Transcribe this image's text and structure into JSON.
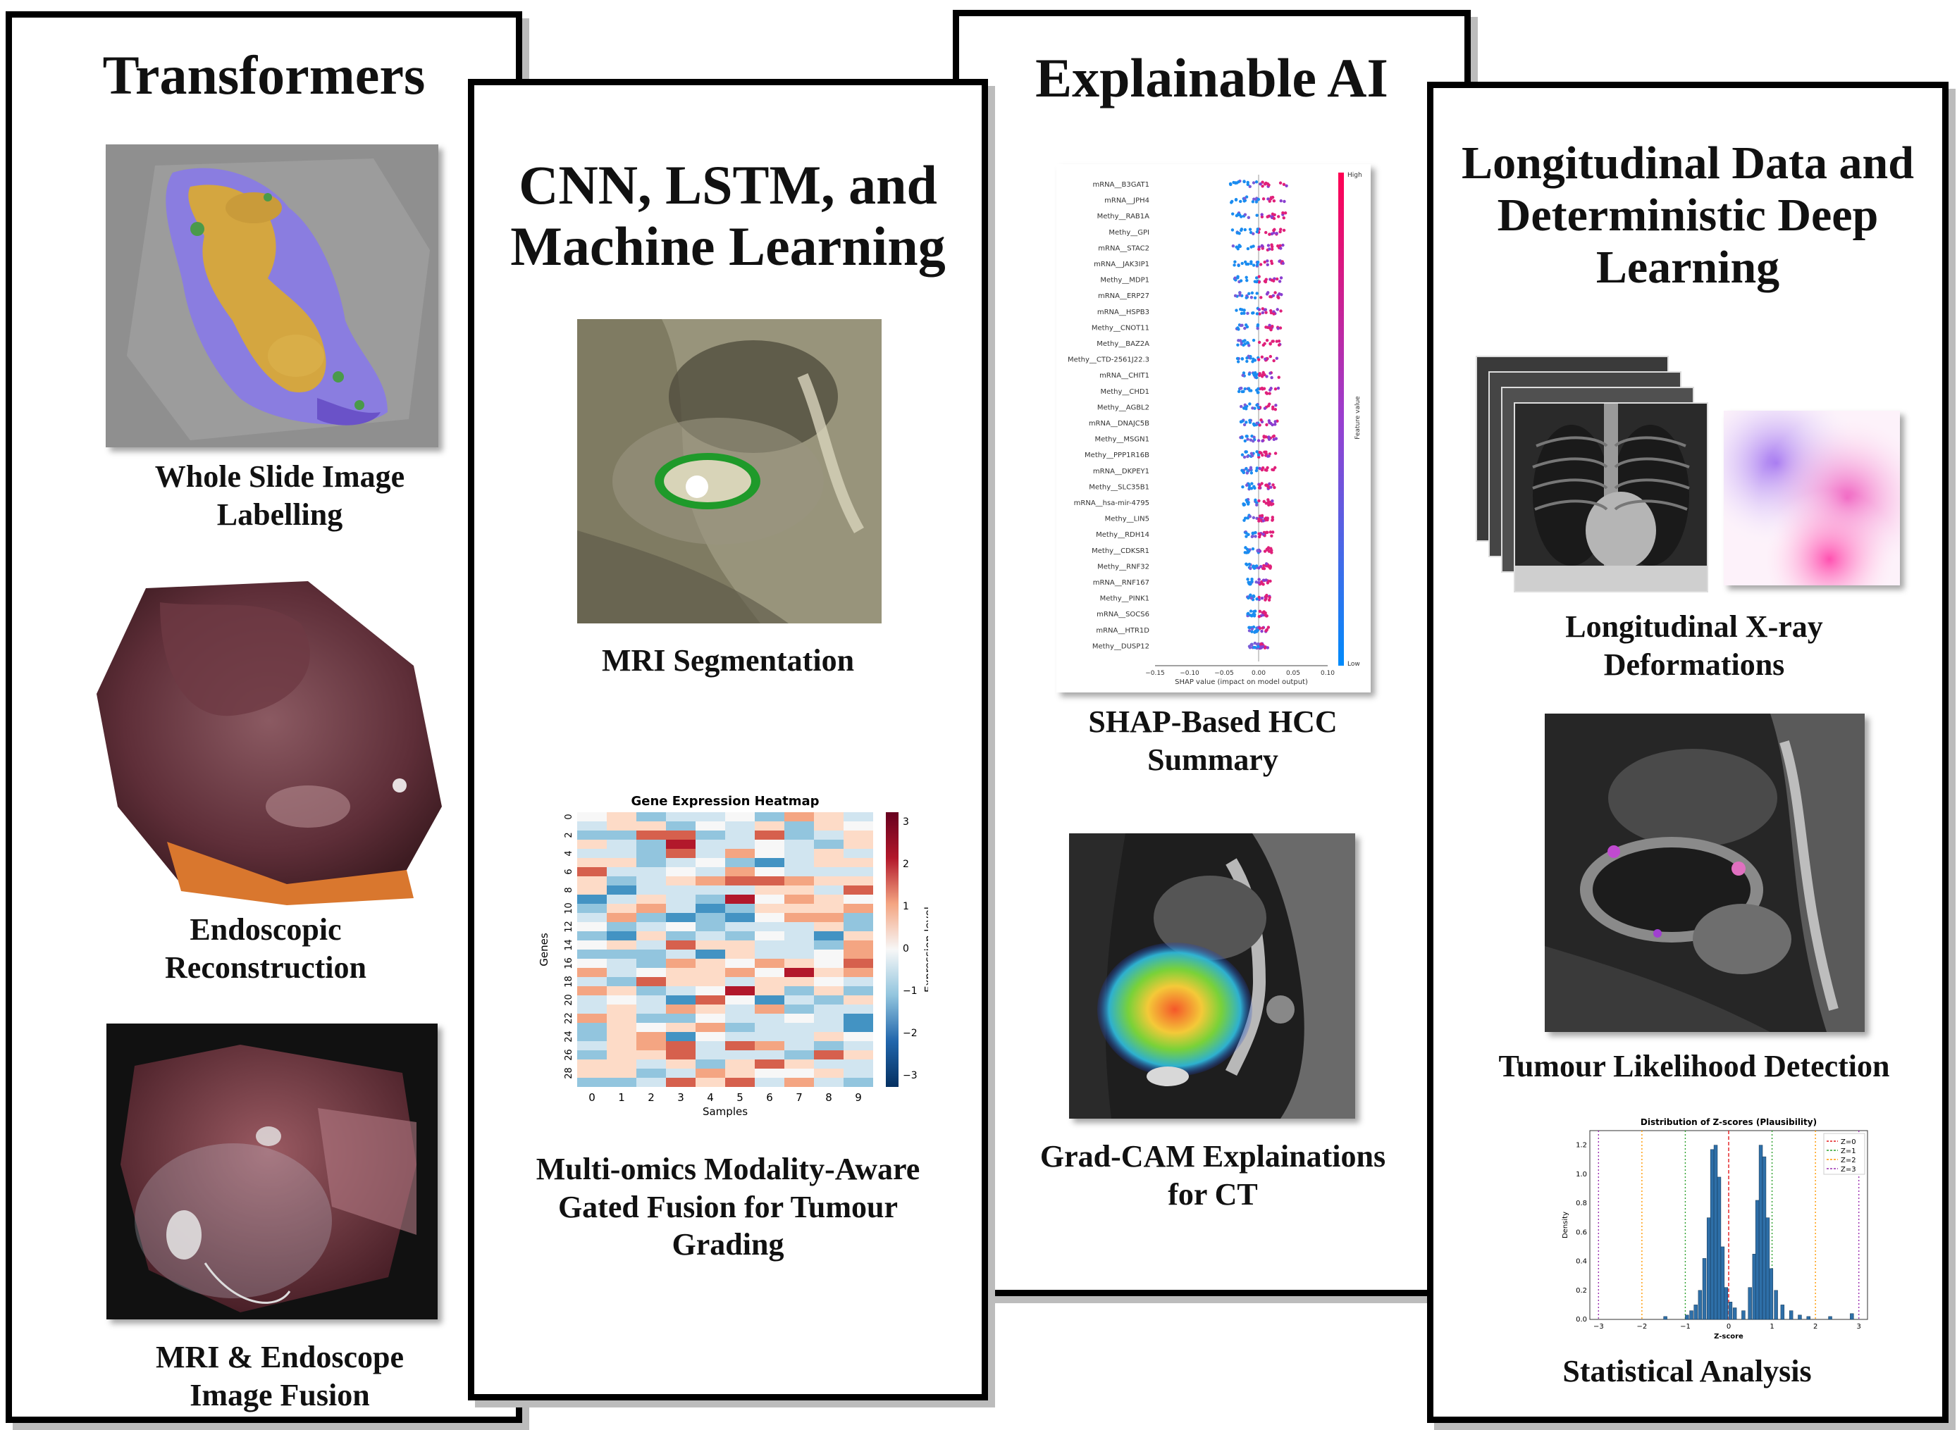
{
  "panels": {
    "transformers": {
      "title": "Transformers",
      "captions": [
        "Whole Slide Image Labelling",
        "Endoscopic Reconstruction",
        "MRI & Endoscope Image Fusion"
      ]
    },
    "cnn": {
      "title": "CNN, LSTM, and Machine Learning",
      "captions": [
        "MRI Segmentation",
        "Multi-omics Modality-Aware Gated Fusion for Tumour Grading"
      ]
    },
    "xai": {
      "title": "Explainable AI",
      "captions": [
        "SHAP-Based HCC Summary",
        "Grad-CAM Explainations for CT"
      ]
    },
    "longitudinal": {
      "title": "Longitudinal Data and Deterministic Deep Learning",
      "captions": [
        "Longitudinal X-ray Deformations",
        "Tumour Likelihood Detection",
        "Statistical Analysis"
      ]
    }
  },
  "heatmap": {
    "title": "Gene Expression Heatmap",
    "xlabel": "Samples",
    "ylabel": "Genes",
    "colorbar_label": "Expression level",
    "x_ticks": [
      "0",
      "1",
      "2",
      "3",
      "4",
      "5",
      "6",
      "7",
      "8",
      "9"
    ],
    "y_ticks": [
      "0",
      "2",
      "4",
      "6",
      "8",
      "10",
      "12",
      "14",
      "16",
      "18",
      "20",
      "22",
      "24",
      "26",
      "28"
    ],
    "colorbar_ticks": [
      "3",
      "2",
      "1",
      "0",
      "−1",
      "−2",
      "−3"
    ]
  },
  "shap": {
    "features": [
      "mRNA__B3GAT1",
      "mRNA__JPH4",
      "Methy__RAB1A",
      "Methy__GPI",
      "mRNA__STAC2",
      "mRNA__JAK3IP1",
      "Methy__MDP1",
      "mRNA__ERP27",
      "mRNA__HSPB3",
      "Methy__CNOT11",
      "Methy__BAZ2A",
      "Methy__CTD-2561J22.3",
      "mRNA__CHIT1",
      "Methy__CHD1",
      "Methy__AGBL2",
      "mRNA__DNAJC5B",
      "Methy__MSGN1",
      "Methy__PPP1R16B",
      "mRNA__DKPEY1",
      "Methy__SLC35B1",
      "mRNA__hsa-mir-4795",
      "Methy__LIN5",
      "Methy__RDH14",
      "Methy__CDKSR1",
      "Methy__RNF32",
      "mRNA__RNF167",
      "Methy__PINK1",
      "mRNA__SOCS6",
      "mRNA__HTR1D",
      "Methy__DUSP12"
    ],
    "xlabel": "SHAP value (impact on model output)",
    "x_ticks": [
      "−0.15",
      "−0.10",
      "−0.05",
      "0.00",
      "0.05",
      "0.10"
    ],
    "colorbar_label": "Feature value",
    "high_label": "High",
    "low_label": "Low"
  },
  "zscore": {
    "title": "Distribution of Z-scores (Plausibility)",
    "xlabel": "Z-score",
    "ylabel": "Density",
    "x_ticks": [
      "−3",
      "−2",
      "−1",
      "0",
      "1",
      "2",
      "3"
    ],
    "y_ticks": [
      "0.0",
      "0.2",
      "0.4",
      "0.6",
      "0.8",
      "1.0",
      "1.2"
    ],
    "legend": [
      {
        "label": "Z=0",
        "color": "#e41a1c"
      },
      {
        "label": "Z=1",
        "color": "#2ca02c"
      },
      {
        "label": "Z=2",
        "color": "#ff9900"
      },
      {
        "label": "Z=3",
        "color": "#9b30b0"
      }
    ]
  }
}
